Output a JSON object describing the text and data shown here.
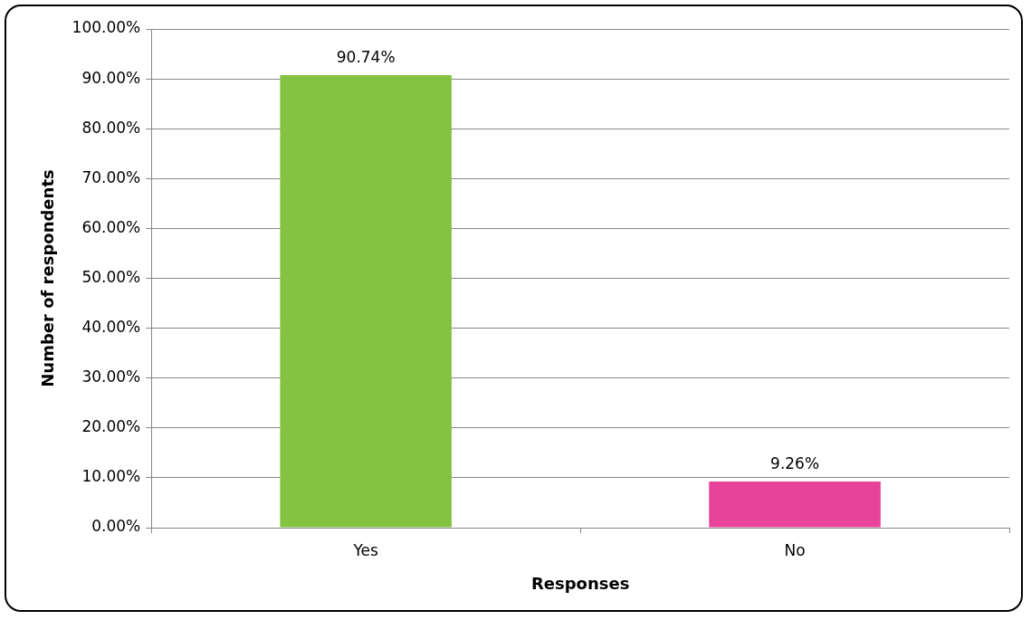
{
  "chart_data": {
    "type": "bar",
    "xlabel": "Responses",
    "ylabel": "Number of respondents",
    "categories": [
      "Yes",
      "No"
    ],
    "values": [
      90.74,
      9.26
    ],
    "colors": [
      "#84c341",
      "#e8439a"
    ],
    "value_labels": [
      "90.74%",
      "9.26%"
    ],
    "ylim": [
      0,
      100
    ],
    "yticks": [
      {
        "value": 0,
        "label": "0.00%"
      },
      {
        "value": 10,
        "label": "10.00%"
      },
      {
        "value": 20,
        "label": "20.00%"
      },
      {
        "value": 30,
        "label": "30.00%"
      },
      {
        "value": 40,
        "label": "40.00%"
      },
      {
        "value": 50,
        "label": "50.00%"
      },
      {
        "value": 60,
        "label": "60.00%"
      },
      {
        "value": 70,
        "label": "70.00%"
      },
      {
        "value": 80,
        "label": "80.00%"
      },
      {
        "value": 90,
        "label": "90.00%"
      },
      {
        "value": 100,
        "label": "100.00%"
      }
    ],
    "grid": "y",
    "legend": false
  }
}
